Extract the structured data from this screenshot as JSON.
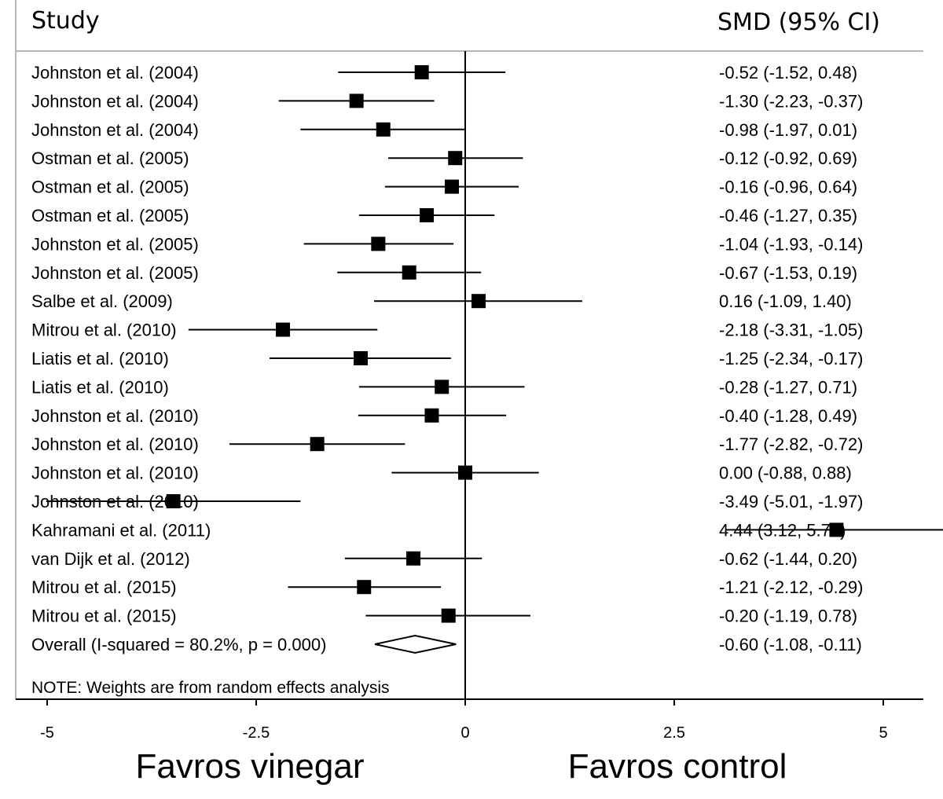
{
  "chart_data": {
    "type": "forest",
    "headers": {
      "study": "Study",
      "effect": "SMD (95% CI)"
    },
    "studies": [
      {
        "label": "Johnston et al. (2004)",
        "smd": -0.52,
        "lo": -1.52,
        "hi": 0.48,
        "text": "-0.52 (-1.52, 0.48)"
      },
      {
        "label": "Johnston et al. (2004)",
        "smd": -1.3,
        "lo": -2.23,
        "hi": -0.37,
        "text": "-1.30 (-2.23, -0.37)"
      },
      {
        "label": "Johnston et al. (2004)",
        "smd": -0.98,
        "lo": -1.97,
        "hi": 0.01,
        "text": "-0.98 (-1.97, 0.01)"
      },
      {
        "label": "Ostman et al. (2005)",
        "smd": -0.12,
        "lo": -0.92,
        "hi": 0.69,
        "text": "-0.12 (-0.92, 0.69)"
      },
      {
        "label": "Ostman et al. (2005)",
        "smd": -0.16,
        "lo": -0.96,
        "hi": 0.64,
        "text": "-0.16 (-0.96, 0.64)"
      },
      {
        "label": "Ostman et al. (2005)",
        "smd": -0.46,
        "lo": -1.27,
        "hi": 0.35,
        "text": "-0.46 (-1.27, 0.35)"
      },
      {
        "label": "Johnston et al. (2005)",
        "smd": -1.04,
        "lo": -1.93,
        "hi": -0.14,
        "text": "-1.04 (-1.93, -0.14)"
      },
      {
        "label": "Johnston et al. (2005)",
        "smd": -0.67,
        "lo": -1.53,
        "hi": 0.19,
        "text": "-0.67 (-1.53, 0.19)"
      },
      {
        "label": "Salbe et al. (2009)",
        "smd": 0.16,
        "lo": -1.09,
        "hi": 1.4,
        "text": "0.16 (-1.09, 1.40)"
      },
      {
        "label": "Mitrou et al. (2010)",
        "smd": -2.18,
        "lo": -3.31,
        "hi": -1.05,
        "text": "-2.18 (-3.31, -1.05)"
      },
      {
        "label": "Liatis et al. (2010)",
        "smd": -1.25,
        "lo": -2.34,
        "hi": -0.17,
        "text": "-1.25 (-2.34, -0.17)"
      },
      {
        "label": "Liatis et al. (2010)",
        "smd": -0.28,
        "lo": -1.27,
        "hi": 0.71,
        "text": "-0.28 (-1.27, 0.71)"
      },
      {
        "label": "Johnston et al. (2010)",
        "smd": -0.4,
        "lo": -1.28,
        "hi": 0.49,
        "text": "-0.40 (-1.28, 0.49)"
      },
      {
        "label": "Johnston et al. (2010)",
        "smd": -1.77,
        "lo": -2.82,
        "hi": -0.72,
        "text": "-1.77 (-2.82, -0.72)"
      },
      {
        "label": "Johnston et al. (2010)",
        "smd": 0.0,
        "lo": -0.88,
        "hi": 0.88,
        "text": "0.00 (-0.88, 0.88)"
      },
      {
        "label": "Johnston et al. (2010)",
        "smd": -3.49,
        "lo": -5.01,
        "hi": -1.97,
        "text": "-3.49 (-5.01, -1.97)"
      },
      {
        "label": "Kahramani et al. (2011)",
        "smd": 4.44,
        "lo": 3.12,
        "hi": 5.76,
        "text": "4.44 (3.12, 5.76)"
      },
      {
        "label": "van Dijk et al. (2012)",
        "smd": -0.62,
        "lo": -1.44,
        "hi": 0.2,
        "text": "-0.62 (-1.44, 0.20)"
      },
      {
        "label": "Mitrou et al. (2015)",
        "smd": -1.21,
        "lo": -2.12,
        "hi": -0.29,
        "text": "-1.21 (-2.12, -0.29)"
      },
      {
        "label": "Mitrou et al. (2015)",
        "smd": -0.2,
        "lo": -1.19,
        "hi": 0.78,
        "text": "-0.20 (-1.19, 0.78)"
      }
    ],
    "overall": {
      "label": "Overall  (I-squared = 80.2%, p = 0.000)",
      "smd": -0.6,
      "lo": -1.08,
      "hi": -0.11,
      "text": "-0.60 (-1.08, -0.11)"
    },
    "note": "NOTE: Weights are from random effects analysis",
    "x_ticks": [
      -5,
      -2.5,
      0,
      2.5,
      5
    ],
    "x_tick_labels": [
      "-5",
      "-2.5",
      "0",
      "2.5",
      "5"
    ],
    "xlim": [
      -6.5,
      5.5
    ],
    "null_line": 0,
    "left_label": "Favros vinegar",
    "right_label": "Favros control",
    "colors": {
      "ink": "#000000",
      "rule": "#b5b5b5"
    }
  }
}
